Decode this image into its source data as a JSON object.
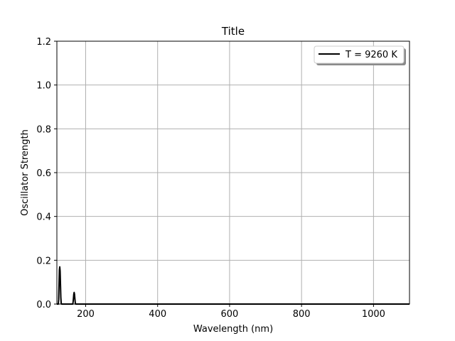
{
  "chart_data": {
    "type": "line",
    "title": "Title",
    "xlabel": "Wavelength (nm)",
    "ylabel": "Oscillator Strength",
    "xlim": [
      120,
      1100
    ],
    "ylim": [
      0,
      1.2
    ],
    "xticks": [
      200,
      400,
      600,
      800,
      1000
    ],
    "yticks": [
      0.0,
      0.2,
      0.4,
      0.6,
      0.8,
      1.0,
      1.2
    ],
    "xtick_labels": [
      "200",
      "400",
      "600",
      "800",
      "1000"
    ],
    "ytick_labels": [
      "0.0",
      "0.2",
      "0.4",
      "0.6",
      "0.8",
      "1.0",
      "1.2"
    ],
    "grid": true,
    "legend_position": "top-right",
    "series": [
      {
        "name": "T = 9260 K",
        "color": "#000000",
        "x": [
          120,
          124,
          125,
          126,
          127,
          128,
          129,
          130,
          131,
          132,
          133,
          134,
          135,
          160,
          164,
          165,
          166,
          167,
          168,
          169,
          170,
          171,
          172,
          176,
          300,
          500,
          700,
          900,
          1100
        ],
        "y": [
          0.0,
          0.0,
          0.02,
          0.09,
          0.155,
          0.17,
          0.15,
          0.09,
          0.03,
          0.005,
          0.0,
          0.0,
          0.0,
          0.0,
          0.0,
          0.008,
          0.025,
          0.045,
          0.053,
          0.045,
          0.025,
          0.008,
          0.0,
          0.0,
          0.0,
          0.0,
          0.0,
          0.0,
          0.0
        ]
      }
    ]
  }
}
